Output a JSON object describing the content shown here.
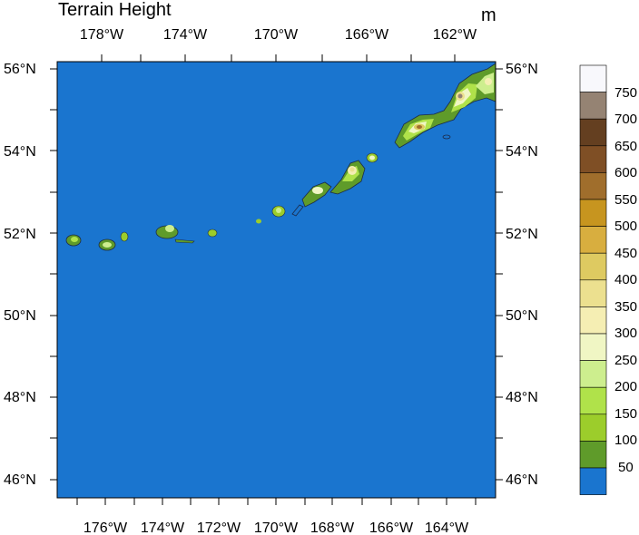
{
  "title": "Terrain Height",
  "units": "m",
  "colors": {
    "ocean": "#1a75cf",
    "frame": "#000000",
    "coastline": "#1b2a49"
  },
  "map": {
    "top_lon_labels": [
      "178°W",
      "174°W",
      "170°W",
      "166°W",
      "162°W"
    ],
    "bottom_lon_labels": [
      "176°W",
      "174°W",
      "172°W",
      "170°W",
      "168°W",
      "166°W",
      "164°W"
    ],
    "left_lat_labels": [
      "56°N",
      "54°N",
      "52°N",
      "50°N",
      "48°N",
      "46°N"
    ],
    "right_lat_labels": [
      "56°N",
      "54°N",
      "52°N",
      "50°N",
      "48°N",
      "46°N"
    ]
  },
  "colorbar": {
    "labels": [
      "750",
      "700",
      "650",
      "600",
      "550",
      "500",
      "450",
      "400",
      "350",
      "300",
      "250",
      "200",
      "150",
      "100",
      "50"
    ],
    "colors_top_to_bottom": [
      "#f8f8fc",
      "#958373",
      "#643f20",
      "#7f4f25",
      "#a06e2c",
      "#c7951f",
      "#d8ae3f",
      "#deca61",
      "#ece08f",
      "#f5eeb3",
      "#f0f6c4",
      "#cdee8e",
      "#b0e24a",
      "#9ccd2b",
      "#5f9b2a",
      "#1a75cf"
    ]
  }
}
